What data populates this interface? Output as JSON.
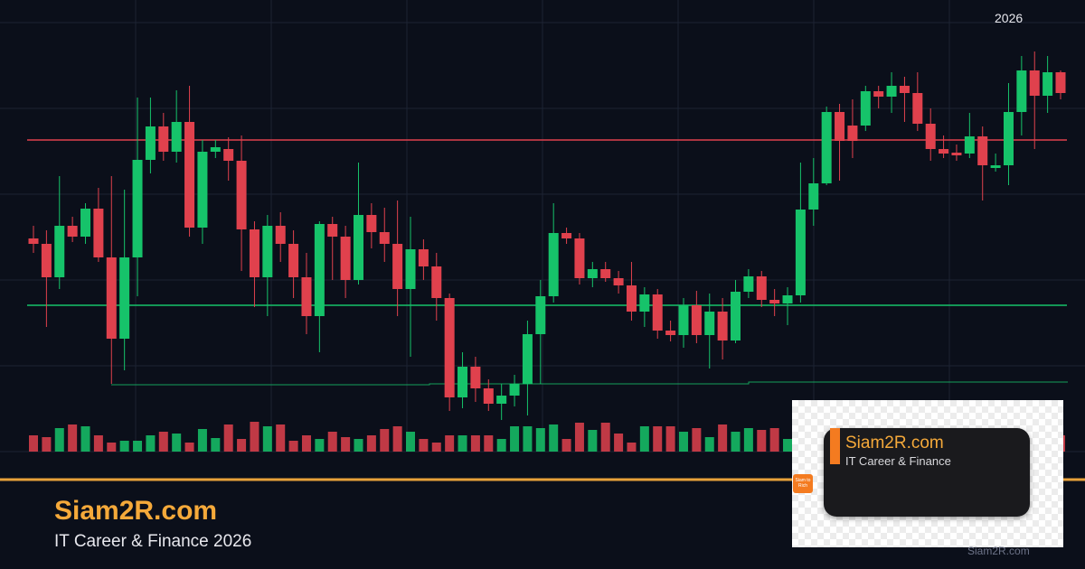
{
  "chart_data": {
    "type": "candlestick",
    "open": [
      236,
      230,
      193,
      250,
      238,
      269,
      215,
      125,
      215,
      323,
      360,
      332,
      365,
      248,
      332,
      335,
      322,
      246,
      193,
      250,
      230,
      193,
      150,
      252,
      238,
      190,
      262,
      243,
      230,
      180,
      224,
      205,
      170,
      60,
      94,
      70,
      53,
      62,
      75,
      130,
      172,
      242,
      236,
      192,
      202,
      192,
      184,
      155,
      174,
      134,
      129,
      162,
      129,
      155,
      123,
      177,
      194,
      168,
      164,
      173,
      268,
      297,
      376,
      361,
      361,
      399,
      393,
      405,
      397,
      363,
      335,
      331,
      330,
      349,
      314,
      317,
      376,
      422,
      394,
      420
    ],
    "high": [
      250,
      245,
      305,
      260,
      275,
      292,
      305,
      290,
      392,
      392,
      375,
      400,
      405,
      345,
      345,
      348,
      350,
      255,
      262,
      265,
      245,
      220,
      255,
      260,
      250,
      320,
      275,
      270,
      278,
      260,
      235,
      220,
      175,
      110,
      105,
      80,
      75,
      85,
      145,
      190,
      275,
      248,
      242,
      210,
      210,
      200,
      210,
      182,
      180,
      145,
      170,
      178,
      175,
      170,
      190,
      202,
      200,
      180,
      182,
      320,
      325,
      382,
      385,
      390,
      405,
      405,
      420,
      415,
      420,
      380,
      350,
      340,
      375,
      360,
      330,
      408,
      438,
      443,
      438,
      422
    ],
    "low": [
      220,
      138,
      180,
      232,
      230,
      210,
      75,
      90,
      172,
      308,
      322,
      320,
      238,
      230,
      325,
      300,
      200,
      160,
      150,
      210,
      170,
      130,
      110,
      190,
      170,
      185,
      225,
      210,
      150,
      105,
      190,
      145,
      45,
      48,
      55,
      45,
      35,
      50,
      40,
      75,
      165,
      230,
      185,
      182,
      188,
      175,
      145,
      138,
      125,
      122,
      115,
      120,
      92,
      102,
      120,
      170,
      160,
      150,
      140,
      165,
      250,
      295,
      300,
      325,
      355,
      380,
      375,
      365,
      355,
      322,
      325,
      322,
      325,
      278,
      310,
      295,
      350,
      335,
      375,
      390
    ],
    "close": [
      230,
      193,
      250,
      238,
      269,
      215,
      125,
      215,
      323,
      360,
      332,
      365,
      248,
      332,
      337,
      322,
      246,
      193,
      250,
      230,
      193,
      150,
      252,
      238,
      190,
      262,
      243,
      230,
      180,
      224,
      205,
      170,
      60,
      94,
      70,
      53,
      62,
      75,
      130,
      172,
      242,
      236,
      192,
      202,
      192,
      184,
      155,
      174,
      134,
      129,
      162,
      129,
      155,
      123,
      177,
      194,
      168,
      164,
      173,
      268,
      297,
      376,
      344,
      344,
      399,
      393,
      405,
      397,
      363,
      335,
      330,
      328,
      349,
      317,
      317,
      376,
      422,
      394,
      420,
      397
    ],
    "volume": [
      18,
      16,
      26,
      30,
      28,
      18,
      10,
      12,
      12,
      18,
      22,
      20,
      10,
      25,
      15,
      30,
      14,
      33,
      28,
      30,
      12,
      18,
      14,
      22,
      16,
      14,
      18,
      25,
      28,
      22,
      14,
      10,
      18,
      18,
      18,
      18,
      14,
      28,
      28,
      26,
      30,
      14,
      32,
      24,
      32,
      20,
      10,
      28,
      28,
      28,
      22,
      26,
      16,
      30,
      22,
      26,
      24,
      26,
      14,
      24,
      28,
      18,
      22,
      24,
      16,
      22,
      28,
      24,
      20,
      26,
      28,
      22,
      20,
      26,
      18,
      24,
      22,
      26,
      24,
      18
    ],
    "ylim": [
      0,
      500
    ],
    "vlim": [
      0,
      40
    ],
    "up_color": "#16c36a",
    "down_color": "#e0414d",
    "levels": [
      {
        "value": 345,
        "color": "#e0414d"
      },
      {
        "value": 162,
        "color": "#16c36a"
      }
    ]
  },
  "year": "2026",
  "brand": {
    "name": "Siam2R.com",
    "subtitle": "IT Career & Finance 2026"
  },
  "card": {
    "name": "Siam2R.com",
    "subtitle": "IT Career & Finance",
    "logo": "Siam to Rich",
    "footer": "Siam2R.com"
  }
}
